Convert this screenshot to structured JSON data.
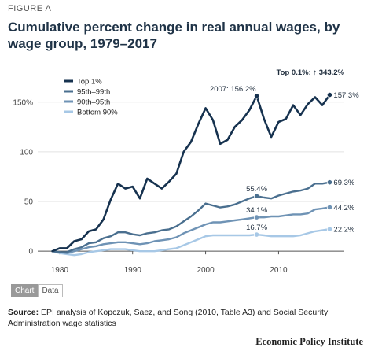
{
  "figure_label": "FIGURE A",
  "title": "Cumulative percent change in real annual wages, by wage group, 1979–2017",
  "tabs": {
    "chart": "Chart",
    "data": "Data"
  },
  "source_prefix": "Source:",
  "source_text": "EPI analysis of Kopczuk, Saez, and Song (2010, Table A3) and Social Security Administration wage statistics",
  "organization": "Economic Policy Institute",
  "chart_data": {
    "type": "line",
    "x_ticks": [
      1980,
      1990,
      2000,
      2010
    ],
    "y_ticks": [
      0,
      50,
      100,
      150
    ],
    "y_tick_labels": [
      "0",
      "50",
      "100",
      "150%"
    ],
    "xlim": [
      1977,
      2019
    ],
    "ylim": [
      -7,
      172
    ],
    "grid": true,
    "legend_position": "top-left",
    "colors": {
      "top1": "#16324f",
      "p95_99": "#4a6f8f",
      "p90_95": "#6f93b5",
      "bottom90": "#a7c8e6"
    },
    "x": [
      1979,
      1980,
      1981,
      1982,
      1983,
      1984,
      1985,
      1986,
      1987,
      1988,
      1989,
      1990,
      1991,
      1992,
      1993,
      1994,
      1995,
      1996,
      1997,
      1998,
      1999,
      2000,
      2001,
      2002,
      2003,
      2004,
      2005,
      2006,
      2007,
      2008,
      2009,
      2010,
      2011,
      2012,
      2013,
      2014,
      2015,
      2016,
      2017
    ],
    "series": [
      {
        "key": "top1",
        "name": "Top 1%",
        "values": [
          0,
          3,
          3,
          10,
          12,
          20,
          22,
          32,
          52,
          68,
          63,
          65,
          53,
          73,
          68,
          63,
          70,
          78,
          100,
          110,
          128,
          144,
          132,
          108,
          112,
          125,
          132,
          142,
          156.2,
          133,
          115,
          130,
          133,
          147,
          137,
          148,
          155,
          147,
          157.3
        ]
      },
      {
        "key": "p95_99",
        "name": "95th–99th",
        "values": [
          0,
          -1,
          -1,
          2,
          4,
          8,
          9,
          13,
          15,
          19,
          19,
          17,
          16,
          18,
          19,
          21,
          22,
          25,
          30,
          35,
          41,
          48,
          46,
          44,
          45,
          47,
          50,
          53,
          55.4,
          54,
          53,
          56,
          58,
          60,
          61,
          63,
          68,
          68,
          69.3
        ]
      },
      {
        "key": "p90_95",
        "name": "90th–95th",
        "values": [
          0,
          -1,
          -2,
          0,
          2,
          4,
          5,
          7,
          8,
          9,
          9,
          8,
          7,
          8,
          10,
          11,
          12,
          14,
          18,
          21,
          24,
          27,
          29,
          29,
          30,
          31,
          32,
          33,
          34.1,
          34,
          35,
          35,
          36,
          37,
          37,
          38,
          42,
          43,
          44.2
        ]
      },
      {
        "key": "bottom90",
        "name": "Bottom 90%",
        "values": [
          0,
          -2,
          -3,
          -4,
          -3,
          -1,
          0,
          1,
          2,
          2,
          2,
          1,
          0,
          0,
          0,
          1,
          2,
          3,
          6,
          9,
          12,
          15,
          16,
          16,
          16,
          16,
          16,
          16,
          16.7,
          16,
          15,
          15,
          15,
          15,
          16,
          18,
          20,
          21,
          22.2
        ]
      }
    ],
    "annotations": [
      {
        "series": "top1",
        "year": 2007,
        "text": "2007: 156.2%",
        "anchor": "end"
      },
      {
        "series": "top1",
        "year": 2017,
        "text": "157.3%",
        "anchor": "start"
      },
      {
        "series": "p95_99",
        "year": 2007,
        "text": "55.4%",
        "anchor": "middle"
      },
      {
        "series": "p95_99",
        "year": 2017,
        "text": "69.3%",
        "anchor": "start"
      },
      {
        "series": "p90_95",
        "year": 2007,
        "text": "34.1%",
        "anchor": "middle"
      },
      {
        "series": "p90_95",
        "year": 2017,
        "text": "44.2%",
        "anchor": "start"
      },
      {
        "series": "bottom90",
        "year": 2007,
        "text": "16.7%",
        "anchor": "middle"
      },
      {
        "series": "bottom90",
        "year": 2017,
        "text": "22.2%",
        "anchor": "start"
      }
    ],
    "offscale_note": {
      "label": "Top 0.1%:",
      "arrow": "↑",
      "value": "343.2%"
    }
  }
}
